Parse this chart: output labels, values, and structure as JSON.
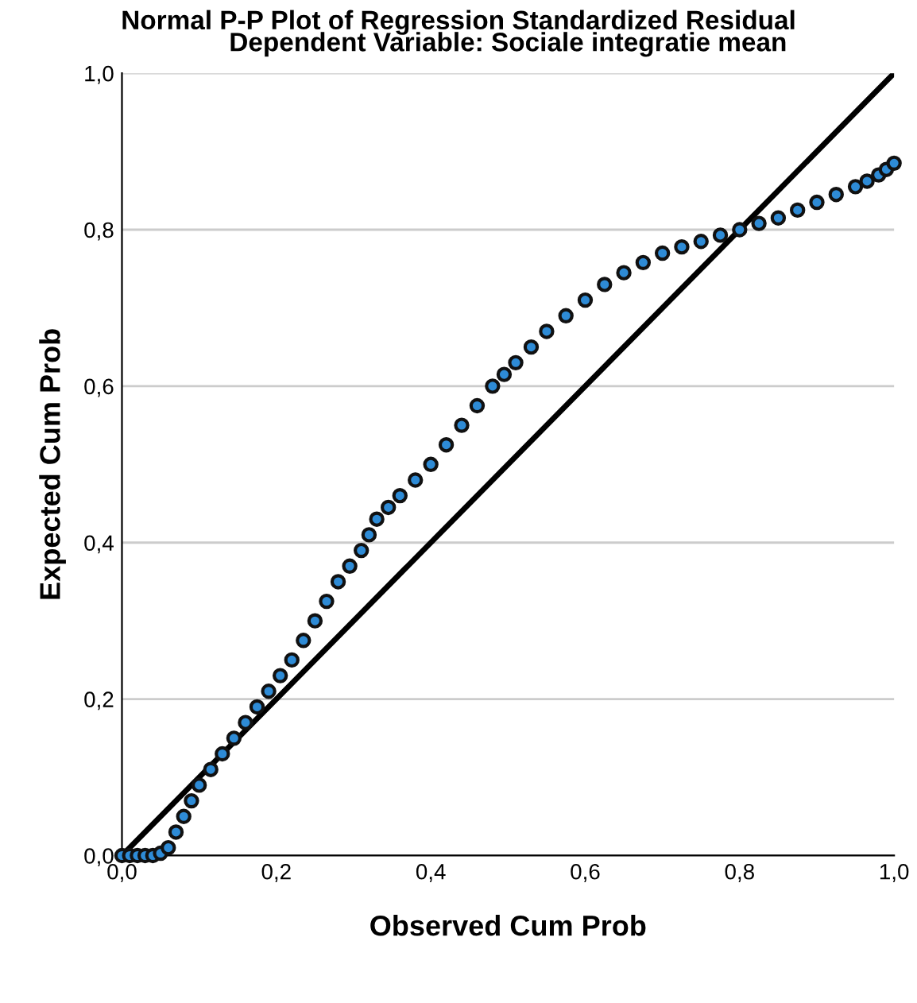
{
  "chart_data": {
    "type": "scatter",
    "title": "Normal P-P Plot of Regression Standardized Residual",
    "subtitle": "Dependent Variable: Sociale integratie mean",
    "xlabel": "Observed Cum Prob",
    "ylabel": "Expected Cum Prob",
    "xlim": [
      0,
      1
    ],
    "ylim": [
      0,
      1
    ],
    "xticks": [
      {
        "value": 0,
        "label": "0,0"
      },
      {
        "value": 0.2,
        "label": "0,2"
      },
      {
        "value": 0.4,
        "label": "0,4"
      },
      {
        "value": 0.6,
        "label": "0,6"
      },
      {
        "value": 0.8,
        "label": "0,8"
      },
      {
        "value": 1,
        "label": "1,0"
      }
    ],
    "yticks": [
      {
        "value": 0,
        "label": "0,0"
      },
      {
        "value": 0.2,
        "label": "0,2"
      },
      {
        "value": 0.4,
        "label": "0,4"
      },
      {
        "value": 0.6,
        "label": "0,6"
      },
      {
        "value": 0.8,
        "label": "0,8"
      },
      {
        "value": 1,
        "label": "1,0"
      }
    ],
    "grid": "y",
    "series": [
      {
        "marker": "circle",
        "color": "#2e8bd6",
        "x": [
          0,
          0.01,
          0.02,
          0.03,
          0.04,
          0.05,
          0.06,
          0.07,
          0.08,
          0.09,
          0.1,
          0.115,
          0.13,
          0.145,
          0.16,
          0.175,
          0.19,
          0.205,
          0.22,
          0.235,
          0.25,
          0.265,
          0.28,
          0.295,
          0.31,
          0.32,
          0.33,
          0.345,
          0.36,
          0.38,
          0.4,
          0.42,
          0.44,
          0.46,
          0.48,
          0.495,
          0.51,
          0.53,
          0.55,
          0.575,
          0.6,
          0.625,
          0.65,
          0.675,
          0.7,
          0.725,
          0.75,
          0.775,
          0.8,
          0.825,
          0.85,
          0.875,
          0.9,
          0.925,
          0.95,
          0.965,
          0.98,
          0.99,
          1.0
        ],
        "values": [
          0,
          0,
          0,
          0,
          0,
          0.003,
          0.01,
          0.03,
          0.05,
          0.07,
          0.09,
          0.11,
          0.13,
          0.15,
          0.17,
          0.19,
          0.21,
          0.23,
          0.25,
          0.275,
          0.3,
          0.325,
          0.35,
          0.37,
          0.39,
          0.41,
          0.43,
          0.445,
          0.46,
          0.48,
          0.5,
          0.525,
          0.55,
          0.575,
          0.6,
          0.615,
          0.63,
          0.65,
          0.67,
          0.69,
          0.71,
          0.73,
          0.745,
          0.758,
          0.77,
          0.778,
          0.785,
          0.793,
          0.8,
          0.808,
          0.815,
          0.825,
          0.835,
          0.845,
          0.855,
          0.862,
          0.87,
          0.877,
          0.885
        ]
      },
      {
        "type": "line",
        "color": "#000000",
        "x": [
          0,
          1
        ],
        "values": [
          0,
          1
        ]
      }
    ]
  }
}
